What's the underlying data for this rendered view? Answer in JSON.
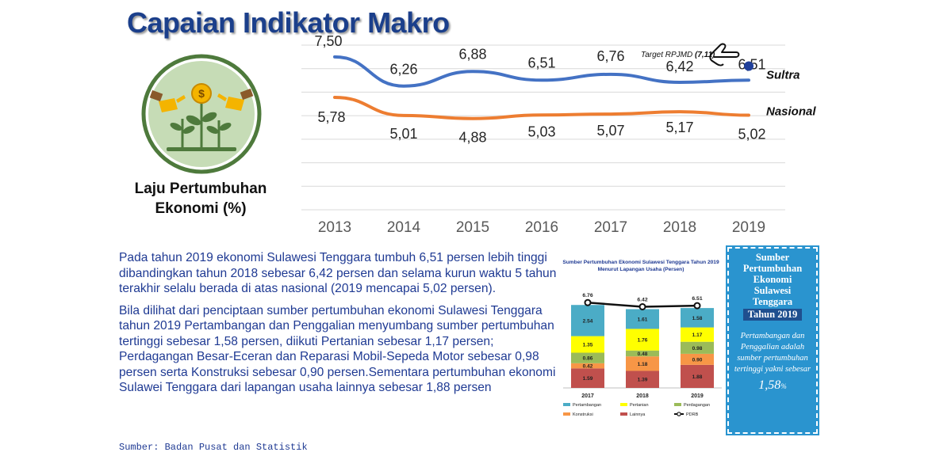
{
  "header": {
    "title": "Capaian Indikator Makro"
  },
  "logo": {
    "caption_line1": "Laju Pertumbuhan",
    "caption_line2": "Ekonomi (%)"
  },
  "chart_data": [
    {
      "type": "line",
      "x": [
        "2013",
        "2014",
        "2015",
        "2016",
        "2017",
        "2018",
        "2019"
      ],
      "series": [
        {
          "name": "Sultra",
          "values": [
            7.5,
            6.26,
            6.88,
            6.51,
            6.76,
            6.42,
            6.51
          ],
          "labels": [
            "7,50",
            "6,26",
            "6,88",
            "6,51",
            "6,76",
            "6,42",
            "6,51"
          ],
          "color": "#4472c4"
        },
        {
          "name": "Nasional",
          "values": [
            5.78,
            5.01,
            4.88,
            5.03,
            5.07,
            5.17,
            5.02
          ],
          "labels": [
            "5,78",
            "5,01",
            "4,88",
            "5,03",
            "5,07",
            "5,17",
            "5,02"
          ],
          "color": "#ed7d31"
        }
      ],
      "target": {
        "label": "Target RPJMD",
        "value_label": "(7,11)",
        "value": 7.11
      },
      "ylim": [
        1,
        8
      ],
      "grid": true
    },
    {
      "type": "bar",
      "title_line1": "Sumber Pertumbuhan Ekonomi Sulawesi Tenggara Tahun 2019",
      "title_line2": "Menurut Lapangan Usaha (Persen)",
      "categories": [
        "2017",
        "2018",
        "2019"
      ],
      "stacked": true,
      "series": [
        {
          "name": "Lainnya",
          "color": "#c0504d",
          "values": [
            1.59,
            1.39,
            1.88
          ],
          "labels": [
            "1.59",
            "1.39",
            "1.88"
          ]
        },
        {
          "name": "Konstruksi",
          "color": "#f79646",
          "values": [
            0.42,
            1.18,
            0.9
          ],
          "labels": [
            "0.42",
            "1.18",
            "0.90"
          ]
        },
        {
          "name": "Perdagangan",
          "color": "#9bbb59",
          "values": [
            0.86,
            0.48,
            0.98
          ],
          "labels": [
            "0.86",
            "0.48",
            "0.98"
          ]
        },
        {
          "name": "Pertanian",
          "color": "#ffff00",
          "values": [
            1.35,
            1.76,
            1.17
          ],
          "labels": [
            "1.35",
            "1.76",
            "1.17"
          ]
        },
        {
          "name": "Pertambangan",
          "color": "#4bacc6",
          "values": [
            2.54,
            1.61,
            1.58
          ],
          "labels": [
            "2.54",
            "1.61",
            "1.58"
          ]
        }
      ],
      "line": {
        "name": "PDRB",
        "values": [
          6.76,
          6.42,
          6.51
        ],
        "labels": [
          "6.76",
          "6.42",
          "6.51"
        ]
      },
      "ylim": [
        0,
        8
      ]
    }
  ],
  "body": {
    "p1": "Pada tahun 2019 ekonomi Sulawesi Tenggara tumbuh 6,51 persen lebih tinggi dibandingkan tahun 2018 sebesar 6,42 persen dan selama kurun waktu 5 tahun terakhir selalu berada di atas nasional (2019 mencapai 5,02 persen).",
    "p2": "Bila dilihat dari penciptaan sumber pertumbuhan ekonomi Sulawesi Tenggara tahun 2019 Pertambangan dan Penggalian menyumbang sumber pertumbuhan tertinggi sebesar 1,58 persen, diikuti Pertanian sebesar 1,17 persen; Perdagangan Besar-Eceran dan Reparasi Mobil-Sepeda Motor sebesar 0,98 persen serta Konstruksi sebesar 0,90 persen.Sementara pertumbuhan ekonomi Sulawei Tenggara dari lapangan usaha lainnya sebesar 1,88 persen",
    "source": "Sumber: Badan Pusat dan Statistik"
  },
  "panel": {
    "title": "Sumber Pertumbuhan Ekonomi Sulawesi Tenggara",
    "year": "Tahun 2019",
    "desc": "Pertambangan dan Penggalian adalah sumber pertumbuhan tertinggi yakni sebesar",
    "value": "1,58",
    "unit": "%"
  },
  "colors": {
    "title": "#1b3f8b",
    "body_text": "#1f3a93",
    "panel_bg": "#2a94cf",
    "logo_ring": "#4e7a3c"
  }
}
